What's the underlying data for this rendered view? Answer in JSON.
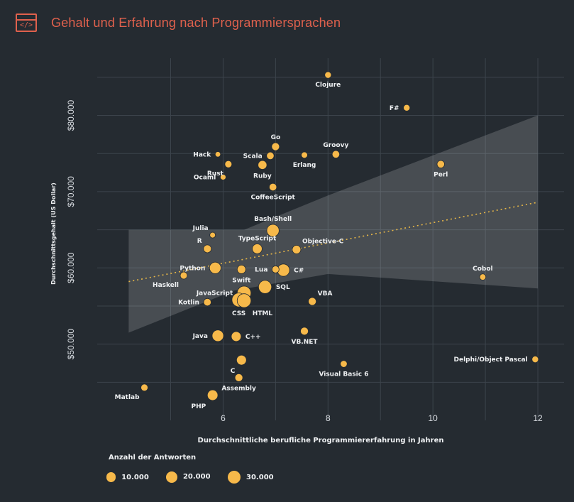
{
  "header": {
    "title": "Gehalt und Erfahrung nach Programmiersprachen",
    "logo_glyph": "</>",
    "logo_icon": "code-window-icon",
    "accent_color": "#e0614d"
  },
  "chart_data": {
    "type": "scatter",
    "title": "Gehalt und Erfahrung nach Programmiersprachen",
    "xlabel": "Durchschnittliche berufliche Programmiererfahrung in Jahren",
    "ylabel": "Durchschnittsgehalt (US Dollar)",
    "xlim": [
      3.6,
      12.5
    ],
    "ylim": [
      40000,
      87500
    ],
    "x_ticks": [
      {
        "value": 6,
        "label": "6"
      },
      {
        "value": 8,
        "label": "8"
      },
      {
        "value": 10,
        "label": "10"
      },
      {
        "value": 12,
        "label": "12"
      }
    ],
    "y_ticks": [
      {
        "value": 50000,
        "label": "$50.000"
      },
      {
        "value": 60000,
        "label": "$60.000"
      },
      {
        "value": 70000,
        "label": "$70.000"
      },
      {
        "value": 80000,
        "label": "$80.000"
      }
    ],
    "x_grid": [
      5,
      6,
      7,
      8,
      9,
      10,
      11,
      12
    ],
    "y_grid": [
      45000,
      50000,
      55000,
      60000,
      65000,
      70000,
      75000,
      80000,
      85000
    ],
    "point_color": "#f7b94a",
    "trend": {
      "x0": 4.2,
      "y0": 58200,
      "x1": 12.0,
      "y1": 68600,
      "color": "#e5b648"
    },
    "band": {
      "upper": [
        [
          4.2,
          65000
        ],
        [
          6.4,
          65000
        ],
        [
          8.0,
          69500
        ],
        [
          12.0,
          80000
        ]
      ],
      "lower": [
        [
          4.2,
          51500
        ],
        [
          6.2,
          57000
        ],
        [
          8.0,
          59200
        ],
        [
          12.0,
          57300
        ]
      ]
    },
    "points": [
      {
        "name": "Clojure",
        "x": 8.0,
        "y": 85300,
        "n": 2000,
        "label_pos": "below"
      },
      {
        "name": "F#",
        "x": 9.5,
        "y": 81000,
        "n": 2000,
        "label_pos": "left"
      },
      {
        "name": "Go",
        "x": 7.0,
        "y": 75900,
        "n": 5000,
        "label_pos": "above"
      },
      {
        "name": "Groovy",
        "x": 8.15,
        "y": 74900,
        "n": 4000,
        "label_pos": "above"
      },
      {
        "name": "Hack",
        "x": 5.9,
        "y": 74900,
        "n": 500,
        "label_pos": "left"
      },
      {
        "name": "Scala",
        "x": 6.9,
        "y": 74700,
        "n": 4000,
        "label_pos": "left"
      },
      {
        "name": "Erlang",
        "x": 7.55,
        "y": 74800,
        "n": 1500,
        "label_pos": "below"
      },
      {
        "name": "Rust",
        "x": 6.1,
        "y": 73600,
        "n": 3000,
        "label_pos": "below-left"
      },
      {
        "name": "Ruby",
        "x": 6.75,
        "y": 73500,
        "n": 8000,
        "label_pos": "below"
      },
      {
        "name": "Perl",
        "x": 10.15,
        "y": 73600,
        "n": 4000,
        "label_pos": "below"
      },
      {
        "name": "Ocaml",
        "x": 6.0,
        "y": 71900,
        "n": 800,
        "label_pos": "left"
      },
      {
        "name": "CoffeeScript",
        "x": 6.95,
        "y": 70600,
        "n": 4000,
        "label_pos": "below"
      },
      {
        "name": "Julia",
        "x": 5.8,
        "y": 64300,
        "n": 800,
        "label_pos": "above-left"
      },
      {
        "name": "Bash/Shell",
        "x": 6.95,
        "y": 64900,
        "n": 25000,
        "label_pos": "above"
      },
      {
        "name": "R",
        "x": 5.7,
        "y": 62500,
        "n": 5000,
        "label_pos": "above-left"
      },
      {
        "name": "TypeScript",
        "x": 6.65,
        "y": 62500,
        "n": 12000,
        "label_pos": "above"
      },
      {
        "name": "Objective-C",
        "x": 7.4,
        "y": 62400,
        "n": 7000,
        "label_pos": "above-right"
      },
      {
        "name": "Python",
        "x": 5.85,
        "y": 60000,
        "n": 20000,
        "label_pos": "left"
      },
      {
        "name": "Swift",
        "x": 6.35,
        "y": 59800,
        "n": 7000,
        "label_pos": "below"
      },
      {
        "name": "Lua",
        "x": 7.0,
        "y": 59800,
        "n": 3000,
        "label_pos": "left"
      },
      {
        "name": "C#",
        "x": 7.15,
        "y": 59700,
        "n": 25000,
        "label_pos": "right"
      },
      {
        "name": "Haskell",
        "x": 5.25,
        "y": 59000,
        "n": 3000,
        "label_pos": "below-left"
      },
      {
        "name": "Cobol",
        "x": 10.95,
        "y": 58800,
        "n": 1500,
        "label_pos": "above"
      },
      {
        "name": "JavaScript",
        "x": 6.4,
        "y": 56700,
        "n": 35000,
        "label_pos": "left"
      },
      {
        "name": "SQL",
        "x": 6.8,
        "y": 57500,
        "n": 30000,
        "label_pos": "right"
      },
      {
        "name": "Kotlin",
        "x": 5.7,
        "y": 55500,
        "n": 4000,
        "label_pos": "left"
      },
      {
        "name": "VBA",
        "x": 7.7,
        "y": 55600,
        "n": 5000,
        "label_pos": "above-right"
      },
      {
        "name": "CSS",
        "x": 6.3,
        "y": 55800,
        "n": 35000,
        "label_pos": "below"
      },
      {
        "name": "HTML",
        "x": 6.4,
        "y": 55700,
        "n": 35000,
        "label_pos": "below-right"
      },
      {
        "name": "Java",
        "x": 5.9,
        "y": 51100,
        "n": 20000,
        "label_pos": "left"
      },
      {
        "name": "C++",
        "x": 6.25,
        "y": 51000,
        "n": 12000,
        "label_pos": "right"
      },
      {
        "name": "VB.NET",
        "x": 7.55,
        "y": 51700,
        "n": 5000,
        "label_pos": "below"
      },
      {
        "name": "Delphi/Object Pascal",
        "x": 11.95,
        "y": 48000,
        "n": 2000,
        "label_pos": "left"
      },
      {
        "name": "C",
        "x": 6.35,
        "y": 47900,
        "n": 12000,
        "label_pos": "below-left"
      },
      {
        "name": "Visual Basic 6",
        "x": 8.3,
        "y": 47400,
        "n": 2500,
        "label_pos": "below"
      },
      {
        "name": "Assembly",
        "x": 6.3,
        "y": 45600,
        "n": 5000,
        "label_pos": "below"
      },
      {
        "name": "Matlab",
        "x": 4.5,
        "y": 44300,
        "n": 3000,
        "label_pos": "below-left"
      },
      {
        "name": "PHP",
        "x": 5.8,
        "y": 43300,
        "n": 15000,
        "label_pos": "below-left"
      }
    ],
    "legend": {
      "title": "Anzahl der Antworten",
      "items": [
        {
          "label": "10.000",
          "n": 10000
        },
        {
          "label": "20.000",
          "n": 20000
        },
        {
          "label": "30.000",
          "n": 30000
        }
      ]
    }
  }
}
